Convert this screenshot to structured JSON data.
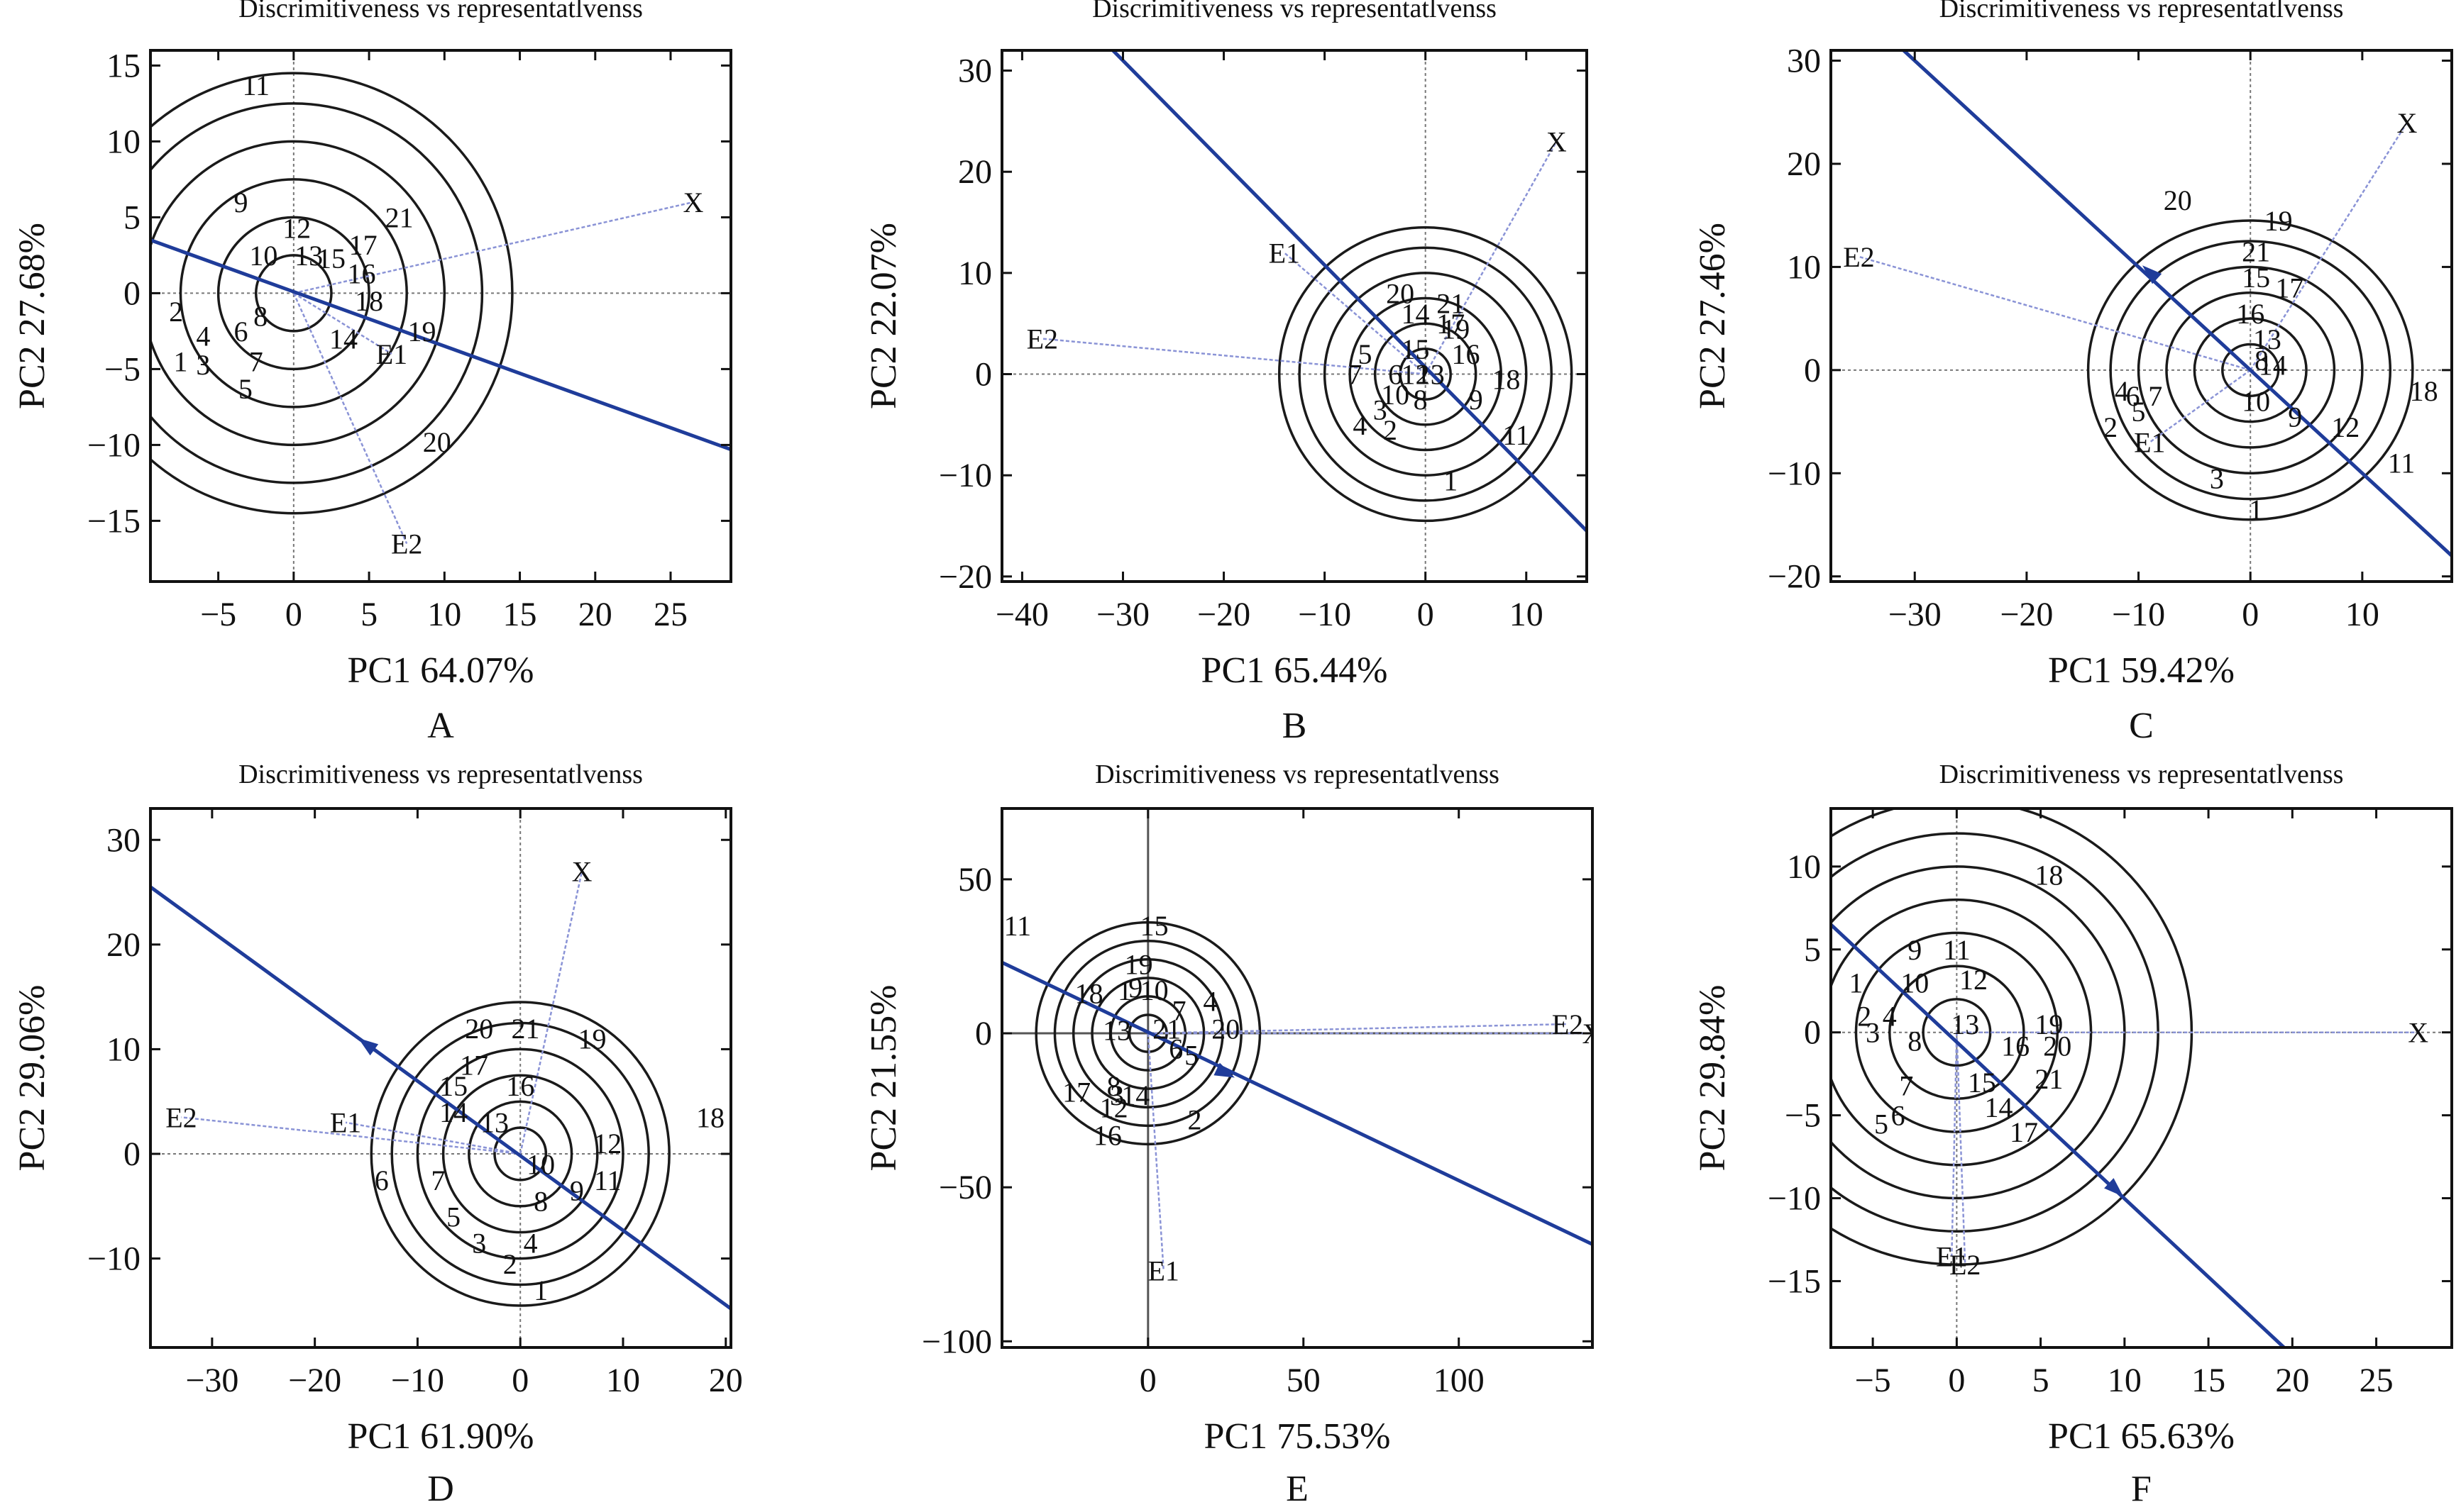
{
  "figure": {
    "panel_title": "Discrimitiveness vs representatlvenss",
    "ring_color": "#1a1a1a",
    "axis_line_color": "#1f3c9a",
    "vector_color": "#8a93d6"
  },
  "chart_data": [
    {
      "type": "scatter",
      "panel": "A",
      "title": "Discrimitiveness vs representatlvenss",
      "xlabel": "PC1 64.07%",
      "ylabel": "PC2 27.68%",
      "xlim": [
        -9.5,
        29
      ],
      "ylim": [
        -19,
        16
      ],
      "xticks": [
        -5,
        0,
        5,
        10,
        15,
        20,
        25
      ],
      "yticks": [
        -15,
        -10,
        -5,
        0,
        5,
        10,
        15
      ],
      "center": [
        0,
        0
      ],
      "rings": [
        2.5,
        5,
        7.5,
        10,
        12.5,
        14.5
      ],
      "line": [
        [
          -9.5,
          3.5
        ],
        [
          29,
          -10.3
        ]
      ],
      "arrow_at": null,
      "vectors": [
        {
          "label": "X",
          "x": 26.5,
          "y": 6
        },
        {
          "label": "E1",
          "x": 6.5,
          "y": -4
        },
        {
          "label": "E2",
          "x": 7.5,
          "y": -16.5
        }
      ],
      "points": [
        {
          "label": "1",
          "x": -7.5,
          "y": -4.5
        },
        {
          "label": "2",
          "x": -7.8,
          "y": -1.2
        },
        {
          "label": "3",
          "x": -6,
          "y": -4.7
        },
        {
          "label": "4",
          "x": -6,
          "y": -2.8
        },
        {
          "label": "5",
          "x": -3.2,
          "y": -6.3
        },
        {
          "label": "6",
          "x": -3.5,
          "y": -2.5
        },
        {
          "label": "7",
          "x": -2.5,
          "y": -4.5
        },
        {
          "label": "8",
          "x": -2.2,
          "y": -1.5
        },
        {
          "label": "9",
          "x": -3.5,
          "y": 6
        },
        {
          "label": "10",
          "x": -2,
          "y": 2.5
        },
        {
          "label": "11",
          "x": -2.5,
          "y": 13.7
        },
        {
          "label": "12",
          "x": 0.2,
          "y": 4.3
        },
        {
          "label": "13",
          "x": 1,
          "y": 2.5
        },
        {
          "label": "14",
          "x": 3.3,
          "y": -3
        },
        {
          "label": "15",
          "x": 2.5,
          "y": 2.3
        },
        {
          "label": "16",
          "x": 4.5,
          "y": 1.3
        },
        {
          "label": "17",
          "x": 4.6,
          "y": 3.2
        },
        {
          "label": "18",
          "x": 5,
          "y": -0.5
        },
        {
          "label": "19",
          "x": 8.5,
          "y": -2.5
        },
        {
          "label": "20",
          "x": 9.5,
          "y": -9.8
        },
        {
          "label": "21",
          "x": 7,
          "y": 5
        }
      ]
    },
    {
      "type": "scatter",
      "panel": "B",
      "title": "Discrimitiveness vs representatlvenss",
      "xlabel": "PC1 65.44%",
      "ylabel": "PC2 22.07%",
      "xlim": [
        -42,
        16
      ],
      "ylim": [
        -20.5,
        32
      ],
      "xticks": [
        -40,
        -30,
        -20,
        -10,
        0,
        10
      ],
      "yticks": [
        -20,
        -10,
        0,
        10,
        20,
        30
      ],
      "center": [
        0,
        0
      ],
      "rings": [
        2.5,
        5,
        7.5,
        10,
        12.5,
        14.5
      ],
      "line": [
        [
          -31,
          32
        ],
        [
          16,
          -15.5
        ]
      ],
      "arrow_at": null,
      "vectors": [
        {
          "label": "X",
          "x": 13,
          "y": 23
        },
        {
          "label": "E1",
          "x": -14,
          "y": 12
        },
        {
          "label": "E2",
          "x": -38,
          "y": 3.5
        }
      ],
      "points": [
        {
          "label": "1",
          "x": 2.5,
          "y": -10.5
        },
        {
          "label": "2",
          "x": -3.5,
          "y": -5.5
        },
        {
          "label": "3",
          "x": -4.5,
          "y": -3.5
        },
        {
          "label": "4",
          "x": -6.5,
          "y": -5
        },
        {
          "label": "5",
          "x": -6,
          "y": 2
        },
        {
          "label": "6",
          "x": -3,
          "y": 0
        },
        {
          "label": "7",
          "x": -7,
          "y": 0
        },
        {
          "label": "8",
          "x": -0.5,
          "y": -2.5
        },
        {
          "label": "9",
          "x": 5,
          "y": -2.5
        },
        {
          "label": "10",
          "x": -3,
          "y": -2
        },
        {
          "label": "11",
          "x": 9,
          "y": -6
        },
        {
          "label": "12",
          "x": -1,
          "y": 0
        },
        {
          "label": "13",
          "x": 0.5,
          "y": 0
        },
        {
          "label": "14",
          "x": -1,
          "y": 6
        },
        {
          "label": "15",
          "x": -1,
          "y": 2.5
        },
        {
          "label": "16",
          "x": 4,
          "y": 2
        },
        {
          "label": "17",
          "x": 2.5,
          "y": 5
        },
        {
          "label": "18",
          "x": 8,
          "y": -0.5
        },
        {
          "label": "19",
          "x": 3,
          "y": 4.5
        },
        {
          "label": "20",
          "x": -2.5,
          "y": 8
        },
        {
          "label": "21",
          "x": 2.5,
          "y": 7
        }
      ]
    },
    {
      "type": "scatter",
      "panel": "C",
      "title": "Discrimitiveness vs representatlvenss",
      "xlabel": "PC1 59.42%",
      "ylabel": "PC2 27.46%",
      "xlim": [
        -37.5,
        18
      ],
      "ylim": [
        -20.5,
        31
      ],
      "xticks": [
        -30,
        -20,
        -10,
        0,
        10
      ],
      "yticks": [
        -20,
        -10,
        0,
        10,
        20,
        30
      ],
      "center": [
        0,
        0
      ],
      "rings": [
        2.5,
        5,
        7.5,
        10,
        12.5,
        14.5
      ],
      "line": [
        [
          -31,
          31
        ],
        [
          18,
          -18
        ]
      ],
      "arrow_at": [
        -9,
        9.5
      ],
      "vectors": [
        {
          "label": "X",
          "x": 14,
          "y": 24
        },
        {
          "label": "E1",
          "x": -9,
          "y": -7
        },
        {
          "label": "E2",
          "x": -35,
          "y": 11
        }
      ],
      "points": [
        {
          "label": "1",
          "x": 0.5,
          "y": -13.5
        },
        {
          "label": "2",
          "x": -12.5,
          "y": -5.5
        },
        {
          "label": "3",
          "x": -3,
          "y": -10.5
        },
        {
          "label": "4",
          "x": -11.5,
          "y": -2
        },
        {
          "label": "5",
          "x": -10,
          "y": -4
        },
        {
          "label": "6",
          "x": -10.5,
          "y": -2.5
        },
        {
          "label": "7",
          "x": -8.5,
          "y": -2.5
        },
        {
          "label": "8",
          "x": 1,
          "y": 1
        },
        {
          "label": "9",
          "x": 4,
          "y": -4.5
        },
        {
          "label": "10",
          "x": 0.5,
          "y": -3
        },
        {
          "label": "11",
          "x": 13.5,
          "y": -9
        },
        {
          "label": "12",
          "x": 8.5,
          "y": -5.5
        },
        {
          "label": "13",
          "x": 1.5,
          "y": 3
        },
        {
          "label": "14",
          "x": 2,
          "y": 0.5
        },
        {
          "label": "15",
          "x": 0.5,
          "y": 9
        },
        {
          "label": "16",
          "x": 0,
          "y": 5.5
        },
        {
          "label": "17",
          "x": 3.5,
          "y": 8
        },
        {
          "label": "18",
          "x": 15.5,
          "y": -2
        },
        {
          "label": "19",
          "x": 2.5,
          "y": 14.5
        },
        {
          "label": "20",
          "x": -6.5,
          "y": 16.5
        },
        {
          "label": "21",
          "x": 0.5,
          "y": 11.5
        }
      ]
    },
    {
      "type": "scatter",
      "panel": "D",
      "title": "Discrimitiveness vs representatlvenss",
      "xlabel": "PC1 61.90%",
      "ylabel": "PC2 29.06%",
      "xlim": [
        -36,
        20.5
      ],
      "ylim": [
        -18.5,
        33
      ],
      "xticks": [
        -30,
        -20,
        -10,
        0,
        10,
        20
      ],
      "yticks": [
        -10,
        0,
        10,
        20,
        30
      ],
      "center": [
        0,
        0
      ],
      "rings": [
        2.5,
        5,
        7.5,
        10,
        12.5,
        14.5
      ],
      "line": [
        [
          -36,
          25.5
        ],
        [
          20.5,
          -14.8
        ]
      ],
      "arrow_at": [
        -15,
        10.5
      ],
      "vectors": [
        {
          "label": "X",
          "x": 6,
          "y": 27
        },
        {
          "label": "E1",
          "x": -17,
          "y": 3
        },
        {
          "label": "E2",
          "x": -33,
          "y": 3.5
        }
      ],
      "points": [
        {
          "label": "1",
          "x": 2,
          "y": -13
        },
        {
          "label": "2",
          "x": -1,
          "y": -10.5
        },
        {
          "label": "3",
          "x": -4,
          "y": -8.5
        },
        {
          "label": "4",
          "x": 1,
          "y": -8.5
        },
        {
          "label": "5",
          "x": -6.5,
          "y": -6
        },
        {
          "label": "6",
          "x": -13.5,
          "y": -2.5
        },
        {
          "label": "7",
          "x": -8,
          "y": -2.5
        },
        {
          "label": "8",
          "x": 2,
          "y": -4.5
        },
        {
          "label": "9",
          "x": 5.5,
          "y": -3.5
        },
        {
          "label": "10",
          "x": 2,
          "y": -1
        },
        {
          "label": "11",
          "x": 8.5,
          "y": -2.5
        },
        {
          "label": "12",
          "x": 8.5,
          "y": 1
        },
        {
          "label": "13",
          "x": -2.5,
          "y": 3
        },
        {
          "label": "14",
          "x": -6.5,
          "y": 4
        },
        {
          "label": "15",
          "x": -6.5,
          "y": 6.5
        },
        {
          "label": "16",
          "x": 0,
          "y": 6.5
        },
        {
          "label": "17",
          "x": -4.5,
          "y": 8.5
        },
        {
          "label": "18",
          "x": 18.5,
          "y": 3.5
        },
        {
          "label": "19",
          "x": 7,
          "y": 11
        },
        {
          "label": "20",
          "x": -4,
          "y": 12
        },
        {
          "label": "21",
          "x": 0.5,
          "y": 12
        }
      ]
    },
    {
      "type": "scatter",
      "panel": "E",
      "title": "Discrimitiveness vs representatlvenss",
      "xlabel": "PC1 75.53%",
      "ylabel": "PC2 21.55%",
      "xlim": [
        -47,
        143
      ],
      "ylim": [
        -102,
        73
      ],
      "xticks": [
        0,
        50,
        100
      ],
      "yticks": [
        -100,
        -50,
        0,
        50
      ],
      "center": [
        0,
        0
      ],
      "rings": [
        6,
        12,
        18,
        24,
        30,
        36
      ],
      "line": [
        [
          -47,
          23
        ],
        [
          143,
          -68.5
        ]
      ],
      "arrow_at": [
        25,
        -13
      ],
      "solid_axes": true,
      "vectors": [
        {
          "label": "X",
          "x": 143,
          "y": 0
        },
        {
          "label": "E1",
          "x": 5,
          "y": -77
        },
        {
          "label": "E2",
          "x": 135,
          "y": 3
        }
      ],
      "points": [
        {
          "label": "1",
          "x": -7.5,
          "y": 14
        },
        {
          "label": "2",
          "x": 15,
          "y": -28
        },
        {
          "label": "3",
          "x": -10,
          "y": -20
        },
        {
          "label": "4",
          "x": 20,
          "y": 10.5
        },
        {
          "label": "5",
          "x": 14,
          "y": -7
        },
        {
          "label": "6",
          "x": 9,
          "y": -5
        },
        {
          "label": "7",
          "x": 10,
          "y": 7.5
        },
        {
          "label": "8",
          "x": -11,
          "y": -17
        },
        {
          "label": "9",
          "x": -4,
          "y": 15
        },
        {
          "label": "10",
          "x": 2,
          "y": 14
        },
        {
          "label": "11",
          "x": -42,
          "y": 35
        },
        {
          "label": "12",
          "x": -11,
          "y": -24
        },
        {
          "label": "13",
          "x": -10,
          "y": 1
        },
        {
          "label": "14",
          "x": -4,
          "y": -20
        },
        {
          "label": "15",
          "x": 2,
          "y": 35
        },
        {
          "label": "16",
          "x": -13,
          "y": -33
        },
        {
          "label": "17",
          "x": -23,
          "y": -19
        },
        {
          "label": "18",
          "x": -19,
          "y": 13
        },
        {
          "label": "19",
          "x": -3,
          "y": 22.5
        },
        {
          "label": "20",
          "x": 25,
          "y": 1.5
        },
        {
          "label": "21",
          "x": 6,
          "y": 1.5
        }
      ]
    },
    {
      "type": "scatter",
      "panel": "F",
      "title": "Discrimitiveness vs representatlvenss",
      "xlabel": "PC1 65.63%",
      "ylabel": "PC2 29.84%",
      "xlim": [
        -7.5,
        29.5
      ],
      "ylim": [
        -19,
        13.5
      ],
      "xticks": [
        -5,
        0,
        5,
        10,
        15,
        20,
        25
      ],
      "yticks": [
        -15,
        -10,
        -5,
        0,
        5,
        10
      ],
      "center": [
        0,
        0
      ],
      "rings": [
        2,
        4,
        6,
        8,
        10,
        12,
        14
      ],
      "line": [
        [
          -7.5,
          6.5
        ],
        [
          19.5,
          -19
        ]
      ],
      "arrow_at": [
        9.5,
        -9.5
      ],
      "vectors": [
        {
          "label": "X",
          "x": 27.5,
          "y": 0
        },
        {
          "label": "E1",
          "x": -0.3,
          "y": -13.5
        },
        {
          "label": "E2",
          "x": 0.5,
          "y": -14
        }
      ],
      "points": [
        {
          "label": "1",
          "x": -6,
          "y": 3
        },
        {
          "label": "2",
          "x": -5.5,
          "y": 1
        },
        {
          "label": "3",
          "x": -5,
          "y": 0
        },
        {
          "label": "4",
          "x": -4,
          "y": 1
        },
        {
          "label": "5",
          "x": -4.5,
          "y": -5.5
        },
        {
          "label": "6",
          "x": -3.5,
          "y": -5
        },
        {
          "label": "7",
          "x": -3,
          "y": -3.2
        },
        {
          "label": "8",
          "x": -2.5,
          "y": -0.5
        },
        {
          "label": "9",
          "x": -2.5,
          "y": 5
        },
        {
          "label": "10",
          "x": -2.5,
          "y": 3
        },
        {
          "label": "11",
          "x": 0,
          "y": 5
        },
        {
          "label": "12",
          "x": 1,
          "y": 3.2
        },
        {
          "label": "13",
          "x": 0.5,
          "y": 0.5
        },
        {
          "label": "14",
          "x": 2.5,
          "y": -4.5
        },
        {
          "label": "15",
          "x": 1.5,
          "y": -3
        },
        {
          "label": "16",
          "x": 3.5,
          "y": -0.8
        },
        {
          "label": "17",
          "x": 4,
          "y": -6
        },
        {
          "label": "18",
          "x": 5.5,
          "y": 9.5
        },
        {
          "label": "19",
          "x": 5.5,
          "y": 0.5
        },
        {
          "label": "20",
          "x": 6,
          "y": -0.8
        },
        {
          "label": "21",
          "x": 5.5,
          "y": -2.8
        }
      ]
    }
  ],
  "panel_letters": [
    "A",
    "B",
    "C",
    "D",
    "E",
    "F"
  ]
}
